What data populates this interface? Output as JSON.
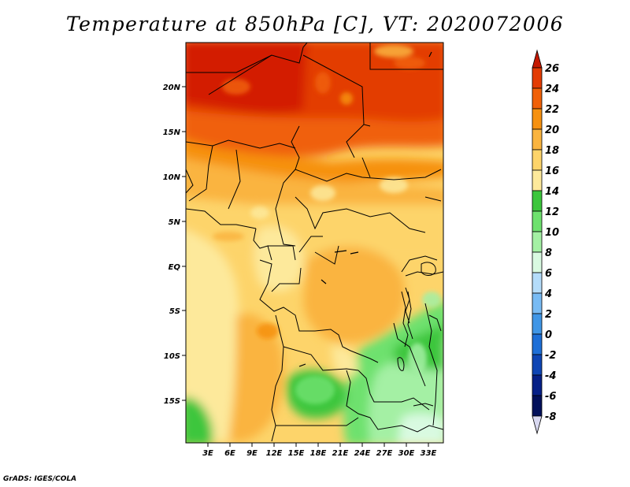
{
  "map": {
    "title": "Temperature at 850hPa [C], VT: 2020072006",
    "credit": "GrADS: IGES/COLA",
    "lat_labels": [
      "20N",
      "15N",
      "10N",
      "5N",
      "EQ",
      "5S",
      "10S",
      "15S"
    ],
    "lon_labels": [
      "3E",
      "6E",
      "9E",
      "12E",
      "15E",
      "18E",
      "21E",
      "24E",
      "27E",
      "30E",
      "33E"
    ],
    "lon_range": [
      0,
      35
    ],
    "lat_range": [
      -20,
      25
    ],
    "variable": "Temperature at 850hPa",
    "units": "C",
    "valid_time": "2020072006"
  },
  "colorbar": {
    "levels": [
      "26",
      "24",
      "22",
      "20",
      "18",
      "16",
      "14",
      "12",
      "10",
      "8",
      "6",
      "4",
      "2",
      "0",
      "-2",
      "-4",
      "-6",
      "-8"
    ],
    "colors": [
      "#d31c00",
      "#e33c04",
      "#f06008",
      "#f69110",
      "#fab43f",
      "#fdd46a",
      "#fde99b",
      "#3cc63c",
      "#6ee16e",
      "#a4f0a4",
      "#d9fae1",
      "#b4dcfa",
      "#78bbf4",
      "#4096e6",
      "#1e6fd7",
      "#0e45b4",
      "#062087",
      "#02105a"
    ],
    "top_arrow_color": "#c41800",
    "bottom_arrow_color": "#d8d8f0"
  }
}
